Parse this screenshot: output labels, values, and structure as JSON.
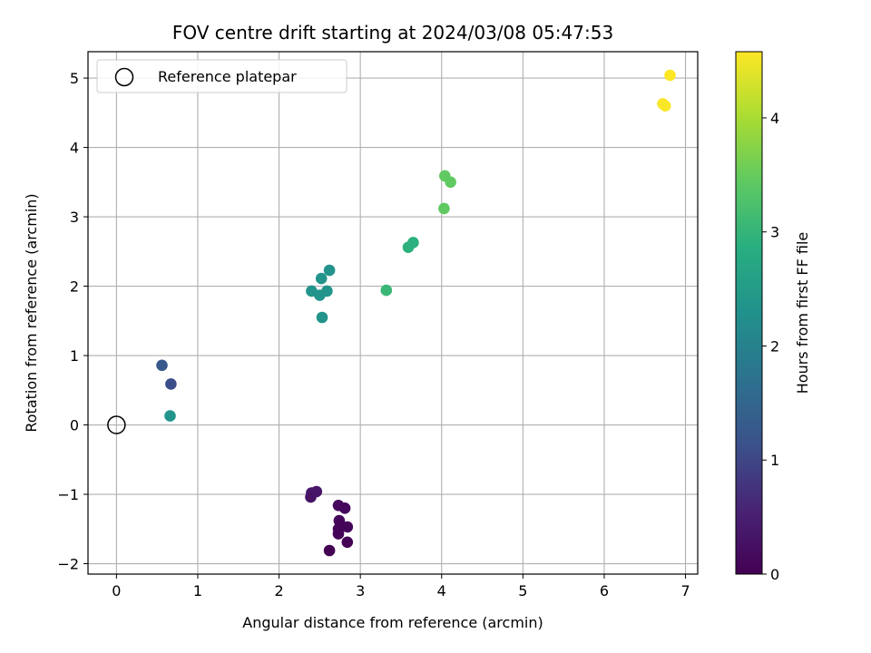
{
  "chart_data": {
    "type": "scatter",
    "title": "FOV centre drift starting at 2024/03/08 05:47:53",
    "xlabel": "Angular distance from reference (arcmin)",
    "ylabel": "Rotation from reference (arcmin)",
    "xlim": [
      -0.35,
      7.15
    ],
    "ylim": [
      -2.15,
      5.38
    ],
    "xticks": [
      0,
      1,
      2,
      3,
      4,
      5,
      6,
      7
    ],
    "yticks": [
      -2,
      -1,
      0,
      1,
      2,
      3,
      4,
      5
    ],
    "grid": true,
    "legend": {
      "placement": "top-left",
      "entries": [
        {
          "label": "Reference platepar",
          "marker": "open-circle"
        }
      ]
    },
    "reference_point": {
      "x": 0,
      "y": 0
    },
    "colorbar": {
      "label": "Hours from first FF file",
      "colormap": "viridis",
      "range": [
        0,
        4.58
      ],
      "ticks": [
        0,
        1,
        2,
        3,
        4
      ]
    },
    "points": [
      {
        "x": 2.4,
        "y": -0.98,
        "c": 0.35
      },
      {
        "x": 2.46,
        "y": -0.96,
        "c": 0.35
      },
      {
        "x": 2.39,
        "y": -1.04,
        "c": 0.3
      },
      {
        "x": 2.73,
        "y": -1.16,
        "c": 0.15
      },
      {
        "x": 2.81,
        "y": -1.2,
        "c": 0.12
      },
      {
        "x": 2.74,
        "y": -1.38,
        "c": 0.1
      },
      {
        "x": 2.73,
        "y": -1.5,
        "c": 0.08
      },
      {
        "x": 2.84,
        "y": -1.47,
        "c": 0.07
      },
      {
        "x": 2.73,
        "y": -1.57,
        "c": 0.05
      },
      {
        "x": 2.84,
        "y": -1.69,
        "c": 0.03
      },
      {
        "x": 2.62,
        "y": -1.81,
        "c": 0.0
      },
      {
        "x": 0.56,
        "y": 0.86,
        "c": 1.25
      },
      {
        "x": 0.67,
        "y": 0.59,
        "c": 1.1
      },
      {
        "x": 0.66,
        "y": 0.13,
        "c": 2.35
      },
      {
        "x": 2.4,
        "y": 1.93,
        "c": 2.35
      },
      {
        "x": 2.52,
        "y": 2.11,
        "c": 2.35
      },
      {
        "x": 2.62,
        "y": 2.23,
        "c": 2.35
      },
      {
        "x": 2.5,
        "y": 1.87,
        "c": 2.35
      },
      {
        "x": 2.59,
        "y": 1.93,
        "c": 2.35
      },
      {
        "x": 2.53,
        "y": 1.55,
        "c": 2.35
      },
      {
        "x": 3.32,
        "y": 1.94,
        "c": 3.05
      },
      {
        "x": 3.59,
        "y": 2.56,
        "c": 2.9
      },
      {
        "x": 3.65,
        "y": 2.63,
        "c": 2.9
      },
      {
        "x": 4.04,
        "y": 3.59,
        "c": 3.45
      },
      {
        "x": 4.11,
        "y": 3.5,
        "c": 3.45
      },
      {
        "x": 4.03,
        "y": 3.12,
        "c": 3.45
      },
      {
        "x": 6.81,
        "y": 5.04,
        "c": 4.58
      },
      {
        "x": 6.72,
        "y": 4.63,
        "c": 4.55
      },
      {
        "x": 6.75,
        "y": 4.6,
        "c": 4.55
      }
    ]
  }
}
